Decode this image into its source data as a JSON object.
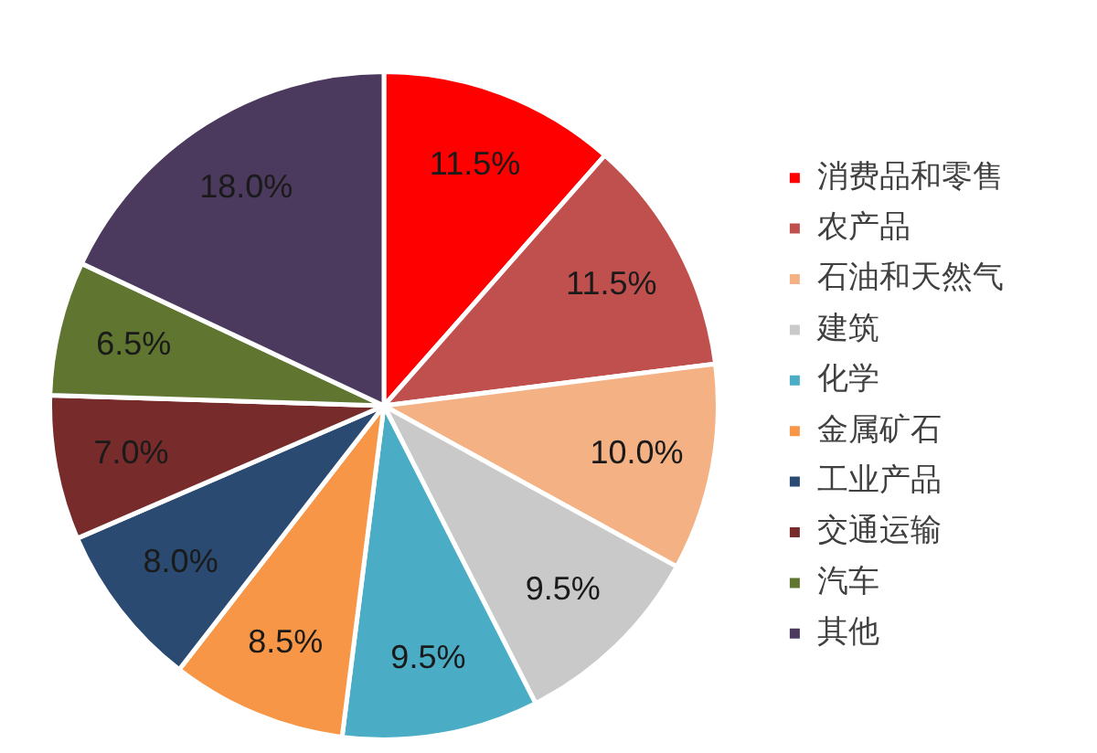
{
  "chart_data": {
    "type": "pie",
    "categories": [
      "消费品和零售",
      "农产品",
      "石油和天然气",
      "建筑",
      "化学",
      "金属矿石",
      "工业产品",
      "交通运输",
      "汽车",
      "其他"
    ],
    "values": [
      11.5,
      11.5,
      10.0,
      9.5,
      9.5,
      8.5,
      8.0,
      7.0,
      6.5,
      18.0
    ],
    "colors": [
      "#ff0000",
      "#c0504d",
      "#f4b183",
      "#c9c9c9",
      "#4bacc6",
      "#f79646",
      "#2a4a72",
      "#772b2b",
      "#5f7530",
      "#4b3a5e"
    ],
    "value_labels": [
      "11.5%",
      "11.5%",
      "10.0%",
      "9.5%",
      "9.5%",
      "8.5%",
      "8.0%",
      "7.0%",
      "6.5%",
      "18.0%"
    ],
    "legend": "right"
  }
}
